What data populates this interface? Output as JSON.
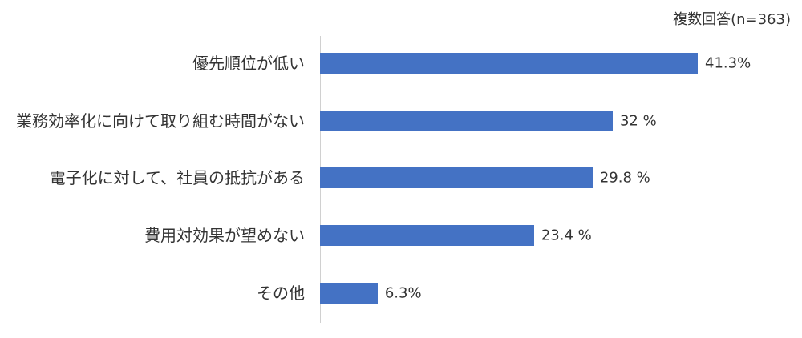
{
  "chart_data": {
    "type": "bar",
    "orientation": "horizontal",
    "annotation": "複数回答(n=363)",
    "categories": [
      "優先順位が低い",
      "業務効率化に向けて取り組む時間がない",
      "電子化に対して、社員の抵抗がある",
      "費用対効果が望めない",
      "その他"
    ],
    "values": [
      41.3,
      32,
      29.8,
      23.4,
      6.3
    ],
    "value_labels": [
      "41.3%",
      "32 %",
      "29.8 %",
      "23.4 %",
      "6.3%"
    ],
    "color": "#4472c4"
  }
}
